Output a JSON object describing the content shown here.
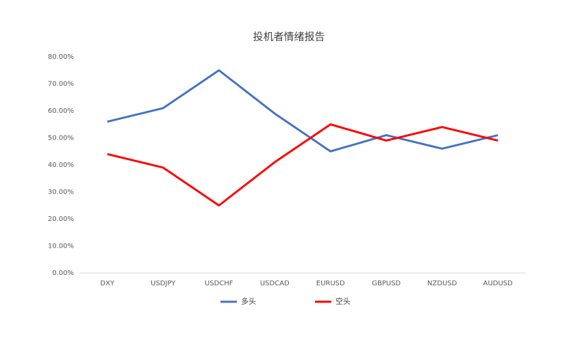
{
  "chart_data": {
    "type": "line",
    "title": "投机者情绪报告",
    "categories": [
      "DXY",
      "USDJPY",
      "USDCHF",
      "USDCAD",
      "EURUSD",
      "GBPUSD",
      "NZDUSD",
      "AUDUSD"
    ],
    "series": [
      {
        "name": "多头",
        "color": "#4472c4",
        "values": [
          56,
          61,
          75,
          59,
          45,
          51,
          46,
          51
        ]
      },
      {
        "name": "空头",
        "color": "#ff0000",
        "values": [
          44,
          39,
          25,
          41,
          55,
          49,
          54,
          49
        ]
      }
    ],
    "ylim": [
      0,
      80
    ],
    "yticks": [
      {
        "value": 0,
        "label": "0.00%"
      },
      {
        "value": 10,
        "label": "10.00%"
      },
      {
        "value": 20,
        "label": "20.00%"
      },
      {
        "value": 30,
        "label": "30.00%"
      },
      {
        "value": 40,
        "label": "40.00%"
      },
      {
        "value": 50,
        "label": "50.00%"
      },
      {
        "value": 60,
        "label": "60.00%"
      },
      {
        "value": 70,
        "label": "70.00%"
      },
      {
        "value": 80,
        "label": "80.00%"
      }
    ],
    "grid": false,
    "legend": "bottom"
  }
}
